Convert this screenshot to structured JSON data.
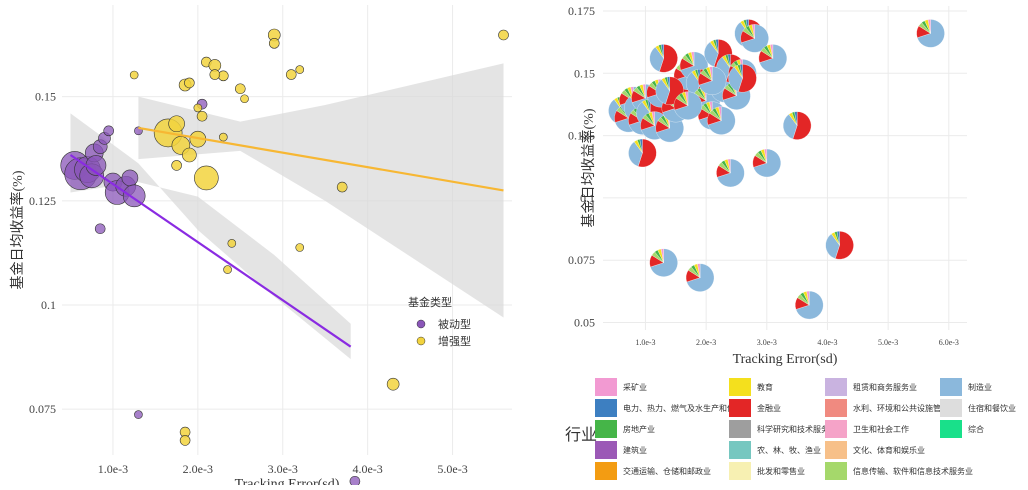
{
  "chart_data": [
    {
      "type": "scatter",
      "xlabel": "Tracking Error(sd)",
      "ylabel": "基金日均收益率(%)",
      "xlim": [
        0.0004,
        0.0057
      ],
      "ylim": [
        0.064,
        0.172
      ],
      "x_ticks": [
        0.001,
        0.002,
        0.003,
        0.004,
        0.005
      ],
      "x_tick_labels": [
        "1.0e-3",
        "2.0e-3",
        "3.0e-3",
        "4.0e-3",
        "5.0e-3"
      ],
      "y_ticks": [
        0.075,
        0.1,
        0.125,
        0.15
      ],
      "y_tick_labels": [
        "0.075",
        "0.1",
        "0.125",
        "0.15"
      ],
      "grid": true,
      "legend": {
        "title": "基金类型",
        "placement": "right",
        "entries": [
          "被动型",
          "增强型"
        ]
      },
      "colors": {
        "passive": "#8a56b8",
        "enhanced": "#f2d33e",
        "passive_line": "#8a2be2",
        "enhanced_line": "#f7b733",
        "band": "#d9d9d9"
      },
      "series": [
        {
          "name": "被动型",
          "points": [
            {
              "x": 0.00055,
              "y": 0.1335,
              "s": 14
            },
            {
              "x": 0.00062,
              "y": 0.1315,
              "s": 16
            },
            {
              "x": 0.0007,
              "y": 0.1325,
              "s": 13
            },
            {
              "x": 0.00075,
              "y": 0.131,
              "s": 12
            },
            {
              "x": 0.00078,
              "y": 0.1365,
              "s": 9
            },
            {
              "x": 0.00085,
              "y": 0.138,
              "s": 7
            },
            {
              "x": 0.0009,
              "y": 0.14,
              "s": 6
            },
            {
              "x": 0.00095,
              "y": 0.1418,
              "s": 5
            },
            {
              "x": 0.001,
              "y": 0.1295,
              "s": 9
            },
            {
              "x": 0.00105,
              "y": 0.127,
              "s": 12
            },
            {
              "x": 0.00115,
              "y": 0.1285,
              "s": 10
            },
            {
              "x": 0.0012,
              "y": 0.1305,
              "s": 8
            },
            {
              "x": 0.00085,
              "y": 0.1183,
              "s": 5
            },
            {
              "x": 0.00125,
              "y": 0.1262,
              "s": 11
            },
            {
              "x": 0.0008,
              "y": 0.1335,
              "s": 10
            },
            {
              "x": 0.0013,
              "y": 0.1418,
              "s": 4
            },
            {
              "x": 0.00205,
              "y": 0.1482,
              "s": 5
            },
            {
              "x": 0.0013,
              "y": 0.0737,
              "s": 4
            },
            {
              "x": 0.00385,
              "y": 0.0577,
              "s": 5
            }
          ]
        },
        {
          "name": "增强型",
          "points": [
            {
              "x": 0.00125,
              "y": 0.1552,
              "s": 4
            },
            {
              "x": 0.00165,
              "y": 0.1413,
              "s": 14
            },
            {
              "x": 0.00175,
              "y": 0.1435,
              "s": 8
            },
            {
              "x": 0.0018,
              "y": 0.1383,
              "s": 9
            },
            {
              "x": 0.0019,
              "y": 0.136,
              "s": 7
            },
            {
              "x": 0.002,
              "y": 0.1398,
              "s": 8
            },
            {
              "x": 0.00175,
              "y": 0.1335,
              "s": 5
            },
            {
              "x": 0.00185,
              "y": 0.1528,
              "s": 6
            },
            {
              "x": 0.0019,
              "y": 0.1533,
              "s": 5
            },
            {
              "x": 0.002,
              "y": 0.1473,
              "s": 4
            },
            {
              "x": 0.00205,
              "y": 0.1453,
              "s": 5
            },
            {
              "x": 0.0021,
              "y": 0.1305,
              "s": 12
            },
            {
              "x": 0.0021,
              "y": 0.1583,
              "s": 5
            },
            {
              "x": 0.0022,
              "y": 0.1575,
              "s": 6
            },
            {
              "x": 0.0023,
              "y": 0.155,
              "s": 5
            },
            {
              "x": 0.0022,
              "y": 0.1553,
              "s": 5
            },
            {
              "x": 0.0023,
              "y": 0.1403,
              "s": 4
            },
            {
              "x": 0.0024,
              "y": 0.1148,
              "s": 4
            },
            {
              "x": 0.0025,
              "y": 0.1519,
              "s": 5
            },
            {
              "x": 0.00255,
              "y": 0.1495,
              "s": 4
            },
            {
              "x": 0.00235,
              "y": 0.1085,
              "s": 4
            },
            {
              "x": 0.0029,
              "y": 0.1648,
              "s": 6
            },
            {
              "x": 0.0029,
              "y": 0.1628,
              "s": 5
            },
            {
              "x": 0.0031,
              "y": 0.1553,
              "s": 5
            },
            {
              "x": 0.0032,
              "y": 0.1565,
              "s": 4
            },
            {
              "x": 0.0032,
              "y": 0.1138,
              "s": 4
            },
            {
              "x": 0.0037,
              "y": 0.1283,
              "s": 5
            },
            {
              "x": 0.0043,
              "y": 0.081,
              "s": 6
            },
            {
              "x": 0.0056,
              "y": 0.1648,
              "s": 5
            },
            {
              "x": 0.00185,
              "y": 0.0695,
              "s": 5
            },
            {
              "x": 0.00185,
              "y": 0.0675,
              "s": 5
            }
          ]
        }
      ],
      "fit_lines": [
        {
          "name": "被动型",
          "x": [
            0.0005,
            0.0038
          ],
          "y": [
            0.136,
            0.09
          ]
        },
        {
          "name": "增强型",
          "x": [
            0.0013,
            0.0056
          ],
          "y": [
            0.1425,
            0.1275
          ]
        }
      ]
    },
    {
      "type": "scatter",
      "xlabel": "Tracking Error(sd)",
      "ylabel": "基金日均收益率(%)",
      "xlim": [
        0.0003,
        0.0063
      ],
      "ylim": [
        0.047,
        0.177
      ],
      "x_ticks": [
        0.001,
        0.002,
        0.003,
        0.004,
        0.005,
        0.006
      ],
      "x_tick_labels": [
        "1.0e-3",
        "2.0e-3",
        "3.0e-3",
        "4.0e-3",
        "5.0e-3",
        "6.0e-3"
      ],
      "y_ticks": [
        0.05,
        0.075,
        0.1,
        0.125,
        0.15,
        0.175
      ],
      "y_tick_labels": [
        "0.05",
        "0.075",
        "0.1",
        "0.125",
        "0.15",
        "0.175"
      ],
      "grid": true,
      "marker": "pie (industry composition)",
      "points": [
        {
          "x": 0.00062,
          "y": 0.135
        },
        {
          "x": 0.00072,
          "y": 0.132
        },
        {
          "x": 0.0008,
          "y": 0.139
        },
        {
          "x": 0.00088,
          "y": 0.136
        },
        {
          "x": 0.00095,
          "y": 0.131
        },
        {
          "x": 0.001,
          "y": 0.14
        },
        {
          "x": 0.00108,
          "y": 0.134
        },
        {
          "x": 0.00115,
          "y": 0.129
        },
        {
          "x": 0.00125,
          "y": 0.142
        },
        {
          "x": 0.0013,
          "y": 0.156
        },
        {
          "x": 0.0014,
          "y": 0.128
        },
        {
          "x": 0.0015,
          "y": 0.136
        },
        {
          "x": 0.0016,
          "y": 0.143
        },
        {
          "x": 0.0017,
          "y": 0.149
        },
        {
          "x": 0.0018,
          "y": 0.153
        },
        {
          "x": 0.0019,
          "y": 0.146
        },
        {
          "x": 0.002,
          "y": 0.139
        },
        {
          "x": 0.0021,
          "y": 0.133
        },
        {
          "x": 0.0022,
          "y": 0.158
        },
        {
          "x": 0.00225,
          "y": 0.131
        },
        {
          "x": 0.0023,
          "y": 0.144
        },
        {
          "x": 0.0024,
          "y": 0.152
        },
        {
          "x": 0.0025,
          "y": 0.141
        },
        {
          "x": 0.0026,
          "y": 0.15
        },
        {
          "x": 0.0027,
          "y": 0.166
        },
        {
          "x": 0.0028,
          "y": 0.164
        },
        {
          "x": 0.0031,
          "y": 0.156
        },
        {
          "x": 0.0035,
          "y": 0.129
        },
        {
          "x": 0.0024,
          "y": 0.11
        },
        {
          "x": 0.003,
          "y": 0.114
        },
        {
          "x": 0.00095,
          "y": 0.118
        },
        {
          "x": 0.0013,
          "y": 0.074
        },
        {
          "x": 0.0019,
          "y": 0.068
        },
        {
          "x": 0.0042,
          "y": 0.081
        },
        {
          "x": 0.0037,
          "y": 0.057
        },
        {
          "x": 0.0057,
          "y": 0.166
        },
        {
          "x": 0.0014,
          "y": 0.143
        },
        {
          "x": 0.0017,
          "y": 0.137
        },
        {
          "x": 0.0021,
          "y": 0.147
        },
        {
          "x": 0.0026,
          "y": 0.148
        }
      ],
      "legend": {
        "title": "行业",
        "placement": "bottom",
        "entries": [
          {
            "label": "采矿业",
            "color": "#f29ad2"
          },
          {
            "label": "电力、热力、燃气及水生产和供应业",
            "color": "#3d7fc1"
          },
          {
            "label": "房地产业",
            "color": "#45b548"
          },
          {
            "label": "建筑业",
            "color": "#9b59b6"
          },
          {
            "label": "交通运输、仓储和邮政业",
            "color": "#f39c12"
          },
          {
            "label": "教育",
            "color": "#f4e01d"
          },
          {
            "label": "金融业",
            "color": "#e32626"
          },
          {
            "label": "科学研究和技术服务业",
            "color": "#9e9e9e"
          },
          {
            "label": "农、林、牧、渔业",
            "color": "#76c7c0"
          },
          {
            "label": "批发和零售业",
            "color": "#f7f0b2"
          },
          {
            "label": "租赁和商务服务业",
            "color": "#c9b3e0"
          },
          {
            "label": "水利、环境和公共设施管理业",
            "color": "#f08a80"
          },
          {
            "label": "卫生和社会工作",
            "color": "#f5a3c8"
          },
          {
            "label": "文化、体育和娱乐业",
            "color": "#f7c089"
          },
          {
            "label": "信息传输、软件和信息技术服务业",
            "color": "#a5d86b"
          },
          {
            "label": "制造业",
            "color": "#8bb8dc"
          },
          {
            "label": "住宿和餐饮业",
            "color": "#dddddd"
          },
          {
            "label": "综合",
            "color": "#19e08a"
          }
        ]
      }
    }
  ]
}
